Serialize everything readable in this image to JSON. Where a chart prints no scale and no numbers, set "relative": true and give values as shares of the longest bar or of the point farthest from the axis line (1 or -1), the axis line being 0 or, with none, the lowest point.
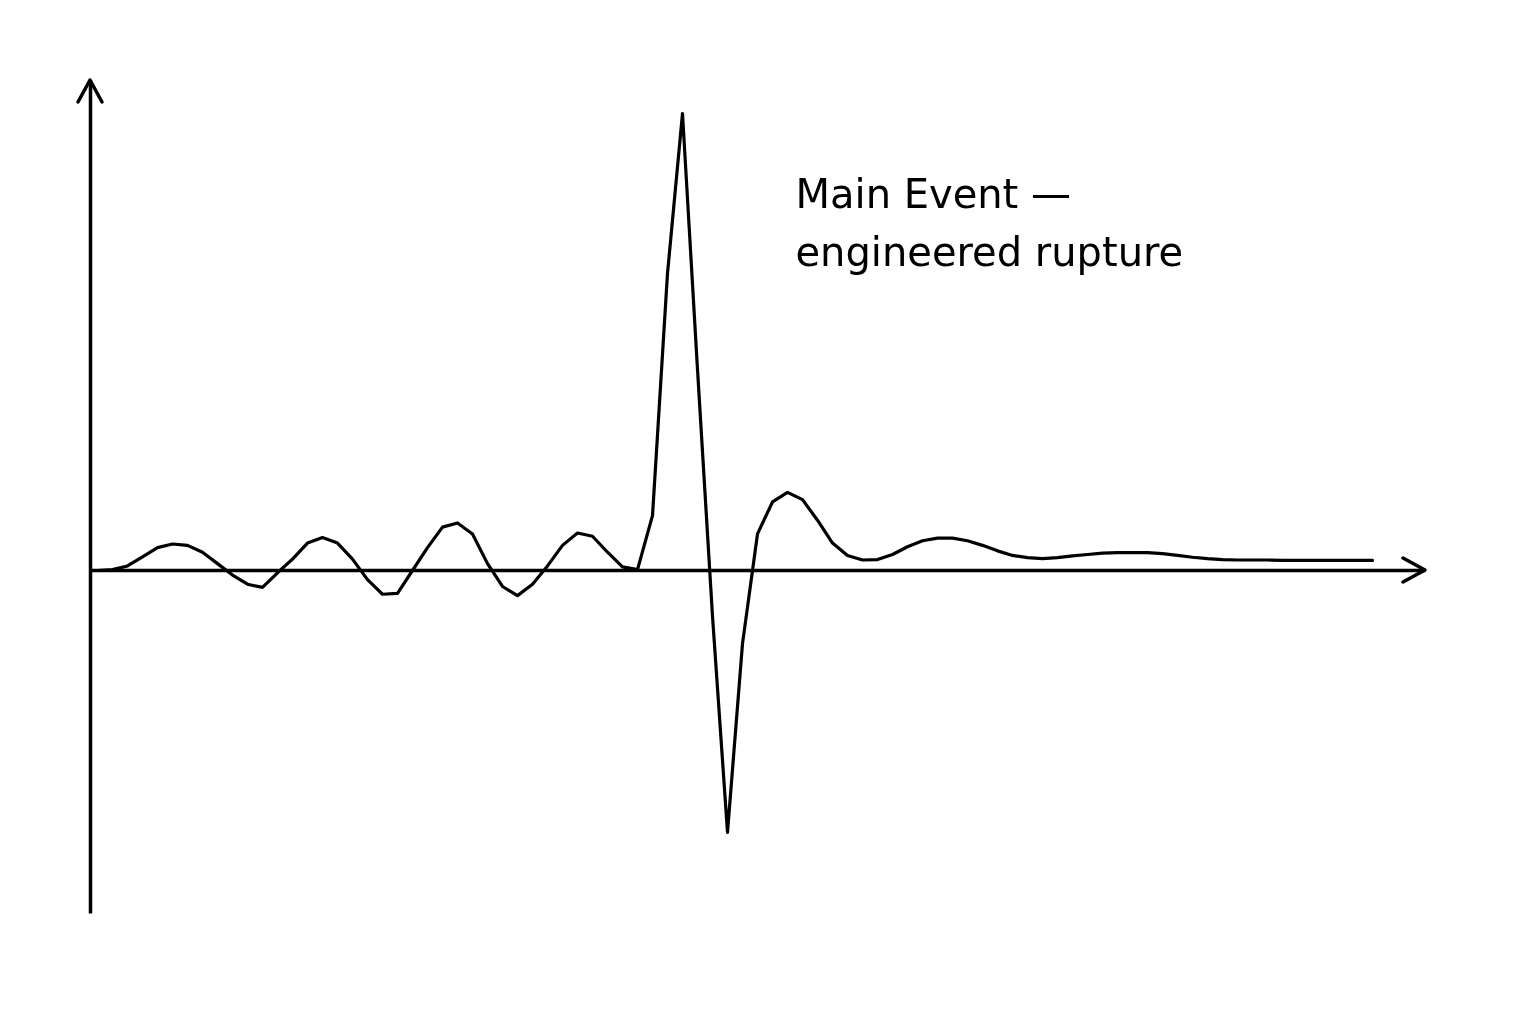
{
  "chart_data": {
    "type": "line",
    "relative": true,
    "categories": [
      null,
      null,
      null,
      null,
      null,
      null,
      null,
      null,
      null,
      null,
      null,
      null,
      null,
      null,
      null,
      null,
      null,
      null,
      null,
      null,
      null,
      null,
      null,
      null,
      null,
      null,
      null,
      null,
      null,
      null,
      null,
      null,
      null,
      null,
      null,
      null,
      null,
      null,
      null,
      null,
      null,
      null,
      null,
      null,
      null,
      null,
      null,
      null,
      null,
      null,
      null,
      null,
      null,
      null,
      null,
      null,
      null,
      null,
      null,
      null,
      null,
      null,
      null,
      null,
      null,
      null,
      null,
      null,
      null,
      null,
      null,
      null,
      null,
      null,
      null,
      null,
      null,
      null,
      null,
      null,
      null,
      null,
      null,
      null,
      null,
      null
    ],
    "series": [
      {
        "color": "#000000",
        "values": [
          0,
          0.002,
          0.01,
          0.03,
          0.05,
          0.058,
          0.055,
          0.04,
          0.015,
          -0.01,
          -0.03,
          -0.037,
          -0.005,
          0.025,
          0.06,
          0.072,
          0.06,
          0.025,
          -0.02,
          -0.052,
          -0.05,
          0.0,
          0.05,
          0.095,
          0.104,
          0.08,
          0.015,
          -0.035,
          -0.055,
          -0.03,
          0.01,
          0.055,
          0.082,
          0.075,
          0.04,
          0.008,
          0.002,
          0.12,
          0.65,
          1,
          0.44,
          -0.1,
          -0.573,
          -0.16,
          0.08,
          0.15,
          0.171,
          0.155,
          0.11,
          0.06,
          0.033,
          0.023,
          0.024,
          0.035,
          0.052,
          0.065,
          0.071,
          0.071,
          0.065,
          0.055,
          0.043,
          0.033,
          0.028,
          0.026,
          0.028,
          0.032,
          0.035,
          0.038,
          0.039,
          0.039,
          0.039,
          0.037,
          0.033,
          0.029,
          0.026,
          0.024,
          0.023,
          0.023,
          0.023,
          0.022,
          0.022,
          0.022,
          0.022,
          0.022,
          0.022,
          0.022
        ]
      }
    ],
    "annotations": [
      "Main Event —\nengineered rupture"
    ],
    "grid": false,
    "marker": "none",
    "line_style": "solid"
  }
}
